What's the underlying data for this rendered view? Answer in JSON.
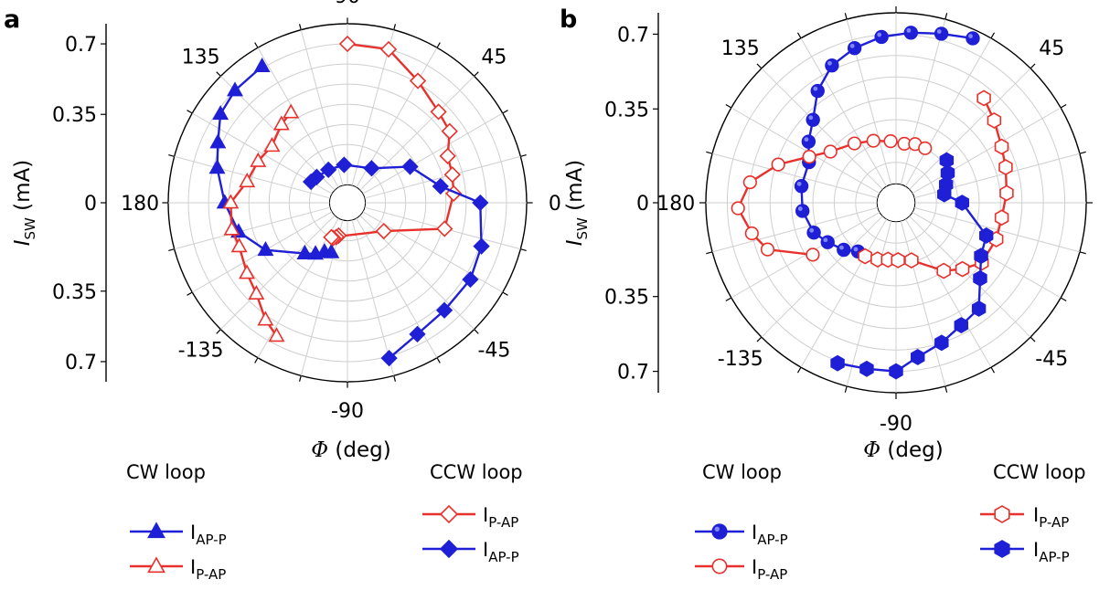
{
  "panels": [
    {
      "label": "a",
      "ylabel_main": "I",
      "ylabel_sub": "SW",
      "ylabel_unit": " (mA)",
      "xlabel_sym": "Φ",
      "xlabel_unit": " (deg)"
    },
    {
      "label": "b",
      "ylabel_main": "I",
      "ylabel_sub": "SW",
      "ylabel_unit": " (mA)",
      "xlabel_sym": "Φ",
      "xlabel_unit": " (deg)"
    }
  ],
  "angle_ticks": [
    "90",
    "45",
    "0",
    "-45",
    "-90",
    "-135",
    "180",
    "135"
  ],
  "radial_ticks": [
    "0.7",
    "0.35",
    "0",
    "0.35",
    "0.7"
  ],
  "legend": {
    "a": {
      "cw_title": "CW loop",
      "ccw_title": "CCW loop",
      "cw": [
        {
          "main": "I",
          "sub": "AP-P"
        },
        {
          "main": "I",
          "sub": "P-AP"
        }
      ],
      "ccw": [
        {
          "main": "I",
          "sub": "P-AP"
        },
        {
          "main": "I",
          "sub": "AP-P"
        }
      ]
    },
    "b": {
      "cw_title": "CW loop",
      "ccw_title": "CCW loop",
      "cw": [
        {
          "main": "I",
          "sub": "AP-P"
        },
        {
          "main": "I",
          "sub": "P-AP"
        }
      ],
      "ccw": [
        {
          "main": "I",
          "sub": "P-AP"
        },
        {
          "main": "I",
          "sub": "AP-P"
        }
      ]
    }
  },
  "colors": {
    "blue": "#1f1fd6",
    "red": "#e8312c"
  },
  "chart_data": [
    {
      "type": "scatter",
      "coordinate": "polar",
      "angle_unit": "deg",
      "r_range": [
        0,
        0.8
      ],
      "grid": true,
      "series": [
        {
          "name": "CW loop I_AP-P",
          "marker": "triangle-filled",
          "color": "#1f1fd6",
          "points": [
            [
              -108,
              0.17
            ],
            [
              -115,
              0.18
            ],
            [
              -122,
              0.21
            ],
            [
              -130,
              0.24
            ],
            [
              -150,
              0.38
            ],
            [
              -165,
              0.47
            ],
            [
              -180,
              0.52
            ],
            [
              165,
              0.58
            ],
            [
              155,
              0.62
            ],
            [
              145,
              0.68
            ],
            [
              135,
              0.7
            ],
            [
              122,
              0.71
            ]
          ]
        },
        {
          "name": "CW loop I_P-AP",
          "marker": "triangle-open",
          "color": "#e8312c",
          "points": [
            [
              -118,
              0.66
            ],
            [
              -125,
              0.62
            ],
            [
              -135,
              0.55
            ],
            [
              -145,
              0.52
            ],
            [
              -158,
              0.49
            ],
            [
              -167,
              0.5
            ],
            [
              -180,
              0.49
            ],
            [
              168,
              0.42
            ],
            [
              155,
              0.4
            ],
            [
              143,
              0.38
            ],
            [
              130,
              0.42
            ],
            [
              122,
              0.44
            ]
          ]
        },
        {
          "name": "CCW loop I_P-AP",
          "marker": "diamond-open",
          "color": "#e8312c",
          "points": [
            [
              -105,
              0.08
            ],
            [
              -108,
              0.09
            ],
            [
              -112,
              0.1
            ],
            [
              -115,
              0.1
            ],
            [
              -38,
              0.14
            ],
            [
              -15,
              0.41
            ],
            [
              5,
              0.44
            ],
            [
              15,
              0.45
            ],
            [
              25,
              0.46
            ],
            [
              35,
              0.53
            ],
            [
              45,
              0.55
            ],
            [
              60,
              0.61
            ],
            [
              75,
              0.7
            ],
            [
              90,
              0.7
            ]
          ]
        },
        {
          "name": "CCW loop I_AP-P",
          "marker": "diamond-filled",
          "color": "#1f1fd6",
          "points": [
            [
              150,
              0.12
            ],
            [
              140,
              0.11
            ],
            [
              120,
              0.1
            ],
            [
              95,
              0.1
            ],
            [
              55,
              0.12
            ],
            [
              30,
              0.27
            ],
            [
              10,
              0.38
            ],
            [
              0,
              0.57
            ],
            [
              -18,
              0.61
            ],
            [
              -32,
              0.63
            ],
            [
              -48,
              0.63
            ],
            [
              -62,
              0.65
            ],
            [
              -75,
              0.71
            ]
          ]
        }
      ]
    },
    {
      "type": "scatter",
      "coordinate": "polar",
      "angle_unit": "deg",
      "r_range": [
        0,
        0.8
      ],
      "grid": true,
      "series": [
        {
          "name": "CW loop I_AP-P",
          "marker": "sphere-filled",
          "color": "#1f1fd6",
          "points": [
            [
              -128,
              0.2
            ],
            [
              -138,
              0.24
            ],
            [
              -150,
              0.28
            ],
            [
              -160,
              0.32
            ],
            [
              -175,
              0.35
            ],
            [
              170,
              0.36
            ],
            [
              155,
              0.36
            ],
            [
              145,
              0.41
            ],
            [
              135,
              0.46
            ],
            [
              125,
              0.55
            ],
            [
              115,
              0.62
            ],
            [
              105,
              0.66
            ],
            [
              95,
              0.69
            ],
            [
              85,
              0.71
            ],
            [
              75,
              0.73
            ],
            [
              65,
              0.76
            ]
          ]
        },
        {
          "name": "CW loop I_P-AP",
          "marker": "circle-open",
          "color": "#e8312c",
          "points": [
            [
              -148,
              0.37
            ],
            [
              -160,
              0.55
            ],
            [
              -168,
              0.6
            ],
            [
              -178,
              0.65
            ],
            [
              172,
              0.6
            ],
            [
              162,
              0.49
            ],
            [
              152,
              0.37
            ],
            [
              142,
              0.3
            ],
            [
              125,
              0.25
            ],
            [
              110,
              0.22
            ],
            [
              95,
              0.2
            ],
            [
              82,
              0.19
            ],
            [
              72,
              0.2
            ],
            [
              62,
              0.2
            ]
          ]
        },
        {
          "name": "CCW loop I_P-AP",
          "marker": "hexagon-open",
          "color": "#e8312c",
          "points": [
            [
              -120,
              0.2
            ],
            [
              -108,
              0.19
            ],
            [
              -98,
              0.18
            ],
            [
              -88,
              0.18
            ],
            [
              -75,
              0.19
            ],
            [
              -55,
              0.3
            ],
            [
              -45,
              0.35
            ],
            [
              -35,
              0.4
            ],
            [
              -20,
              0.41
            ],
            [
              -8,
              0.41
            ],
            [
              5,
              0.43
            ],
            [
              18,
              0.45
            ],
            [
              28,
              0.47
            ],
            [
              40,
              0.51
            ],
            [
              50,
              0.55
            ]
          ]
        },
        {
          "name": "CCW loop I_AP-P",
          "marker": "hexagon-filled",
          "color": "#1f1fd6",
          "points": [
            [
              40,
              0.22
            ],
            [
              30,
              0.19
            ],
            [
              20,
              0.16
            ],
            [
              10,
              0.14
            ],
            [
              0,
              0.22
            ],
            [
              -20,
              0.36
            ],
            [
              -32,
              0.38
            ],
            [
              -42,
              0.44
            ],
            [
              -52,
              0.54
            ],
            [
              -62,
              0.56
            ],
            [
              -72,
              0.6
            ],
            [
              -82,
              0.64
            ],
            [
              -90,
              0.7
            ],
            [
              -100,
              0.7
            ],
            [
              -110,
              0.71
            ]
          ]
        }
      ]
    }
  ]
}
